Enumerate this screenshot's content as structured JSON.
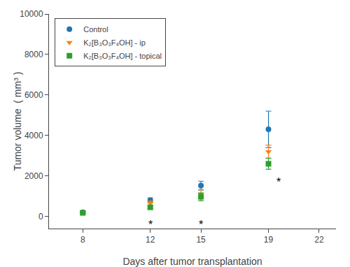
{
  "chart_data": {
    "type": "scatter",
    "x": [
      8,
      12,
      15,
      19
    ],
    "series": [
      {
        "name": "Control",
        "marker": "circle",
        "values": [
          200,
          800,
          1520,
          4300
        ],
        "yerr": [
          50,
          120,
          220,
          900
        ]
      },
      {
        "name": "K₂[B₃O₃F₄OH] - ip",
        "marker": "triangle-down",
        "values": [
          195,
          650,
          1100,
          3200
        ],
        "yerr": [
          45,
          110,
          230,
          320
        ]
      },
      {
        "name": "K₂[B₃O₃F₄OH] - topical",
        "marker": "square",
        "values": [
          175,
          450,
          970,
          2600
        ],
        "yerr": [
          35,
          90,
          190,
          270
        ]
      }
    ],
    "annotations": [
      {
        "x": 12,
        "y": -420,
        "text": "*"
      },
      {
        "x": 15,
        "y": -420,
        "text": "*"
      },
      {
        "x": 19.6,
        "y": 1700,
        "text": "*"
      }
    ],
    "xlabel": "Days after tumor transplantation",
    "ylabel": "Tumor volume  ( mm³ )",
    "xlim": [
      6,
      23
    ],
    "ylim": [
      -600,
      10000
    ],
    "xticks": [
      8,
      12,
      15,
      19,
      22
    ],
    "yticks": [
      0,
      2000,
      4000,
      6000,
      8000,
      10000
    ],
    "legend": "upper left",
    "grid": false
  }
}
